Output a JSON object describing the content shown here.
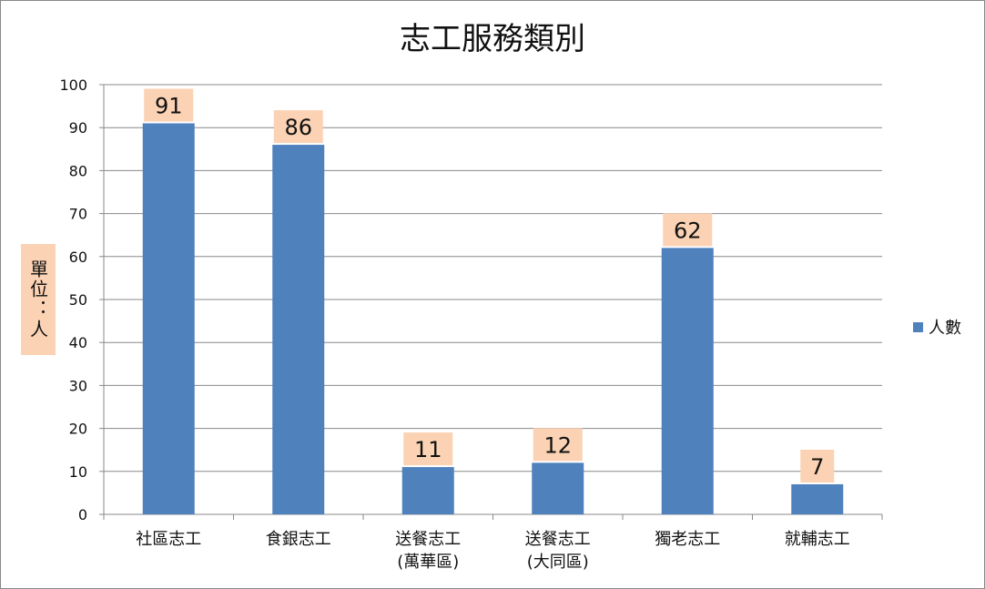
{
  "chart_data": {
    "type": "bar",
    "title": "志工服務類別",
    "ylabel": "單位：人",
    "xlabel": "",
    "ylim": [
      0,
      100
    ],
    "yticks": [
      0,
      10,
      20,
      30,
      40,
      50,
      60,
      70,
      80,
      90,
      100
    ],
    "grid": true,
    "legend_position": "right",
    "categories": [
      [
        "社區志工"
      ],
      [
        "食銀志工"
      ],
      [
        "送餐志工",
        "(萬華區)"
      ],
      [
        "送餐志工",
        "(大同區)"
      ],
      [
        "獨老志工"
      ],
      [
        "就輔志工"
      ]
    ],
    "series": [
      {
        "name": "人數",
        "values": [
          91,
          86,
          11,
          12,
          62,
          7
        ]
      }
    ],
    "colors": {
      "bar": "#4f81bd",
      "label_bg": "#fbd2b4",
      "grid": "#888888",
      "axis": "#888888"
    }
  }
}
